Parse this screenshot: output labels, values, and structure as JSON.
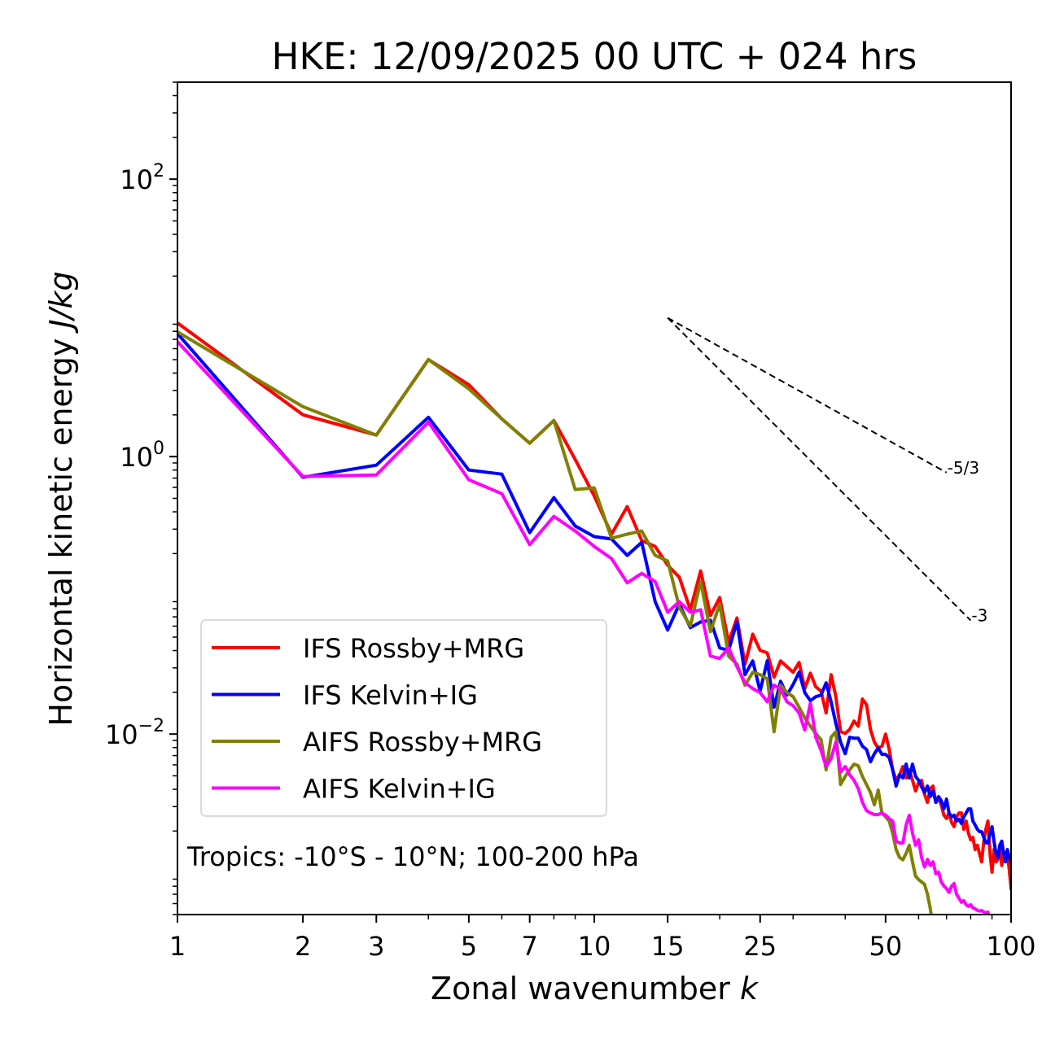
{
  "chart_data": {
    "type": "line",
    "title": "HKE: 12/09/2025 00 UTC + 024 hrs",
    "xlabel": "Zonal wavenumber",
    "xlabel_italic": "k",
    "ylabel": "Horizontal kinetic energy",
    "ylabel_italic": "J/kg",
    "xscale": "log",
    "yscale": "log",
    "xlim": [
      1,
      100
    ],
    "ylim": [
      0.0005,
      500
    ],
    "grid": false,
    "x_ticks": [
      1,
      2,
      3,
      5,
      7,
      10,
      15,
      25,
      50,
      100
    ],
    "x_tick_labels": [
      "1",
      "2",
      "3",
      "5",
      "7",
      "10",
      "15",
      "25",
      "50",
      "100"
    ],
    "x_minor_ticks": [
      4,
      6,
      8,
      9,
      20,
      30,
      40,
      60,
      70,
      80,
      90
    ],
    "y_ticks": [
      0.01,
      1,
      100
    ],
    "y_tick_labels": [
      {
        "base": "10",
        "exp": "−2"
      },
      {
        "base": "10",
        "exp": "0"
      },
      {
        "base": "10",
        "exp": "2"
      }
    ],
    "legend_position": "lower-left",
    "annotation": "Tropics: -10°S - 10°N; 100-200 hPa",
    "reference_lines": [
      {
        "slope": "-5/3",
        "exponent": -1.6667,
        "k_start": 15,
        "k_end": 70,
        "value_start": 10,
        "label": "-5/3"
      },
      {
        "slope": "-3",
        "exponent": -3,
        "k_start": 15,
        "k_end": 80,
        "value_start": 10,
        "label": "-3"
      }
    ],
    "x": [
      1,
      2,
      3,
      4,
      5,
      6,
      7,
      8,
      9,
      10,
      11,
      12,
      13,
      14,
      15,
      16,
      17,
      18,
      19,
      20,
      21,
      22,
      23,
      24,
      25,
      26,
      27,
      28,
      29,
      30,
      31,
      32,
      33,
      34,
      35,
      36,
      37,
      38,
      39,
      40,
      41,
      42,
      43,
      44,
      45,
      46,
      47,
      48,
      49,
      50,
      51,
      52,
      53,
      54,
      55,
      56,
      57,
      58,
      59,
      60,
      61,
      62,
      63,
      64,
      65,
      66,
      67,
      68,
      69,
      70,
      71,
      72,
      73,
      74,
      75,
      76,
      77,
      78,
      79,
      80,
      81,
      82,
      83,
      84,
      85,
      86,
      87,
      88,
      89,
      90,
      91,
      92,
      93,
      94,
      95,
      96,
      97,
      98,
      99,
      100
    ],
    "series": [
      {
        "name": "IFS Rossby+MRG",
        "color": "#ff0000",
        "values": [
          9.19,
          2.0,
          1.43,
          5.01,
          3.3,
          1.87,
          1.25,
          1.82,
          0.954,
          0.52,
          0.276,
          0.436,
          0.248,
          0.225,
          0.165,
          0.135,
          0.0787,
          0.15,
          0.0716,
          0.0964,
          0.0459,
          0.0688,
          0.0319,
          0.0525,
          0.0401,
          0.0385,
          0.0257,
          0.0337,
          0.0306,
          0.0279,
          0.0328,
          0.0213,
          0.0275,
          0.0219,
          0.0204,
          0.0142,
          0.0268,
          0.0186,
          0.0104,
          0.0101,
          0.0108,
          0.0124,
          0.0114,
          0.0179,
          0.0163,
          0.0108,
          0.00874,
          0.00795,
          0.00817,
          0.01,
          0.00774,
          0.00552,
          0.00464,
          0.00509,
          0.00583,
          0.00483,
          0.00552,
          0.00464,
          0.00389,
          0.00445,
          0.00464,
          0.00369,
          0.00322,
          0.00405,
          0.00422,
          0.00322,
          0.00345,
          0.00309,
          0.0026,
          0.00246,
          0.0027,
          0.0023,
          0.00215,
          0.00253,
          0.0027,
          0.0027,
          0.00206,
          0.00236,
          0.00193,
          0.00173,
          0.0018,
          0.00147,
          0.00158,
          0.00138,
          0.0012,
          0.00169,
          0.00206,
          0.00236,
          0.00138,
          0.00101,
          0.00147,
          0.0012,
          0.00125,
          0.00158,
          0.00113,
          0.00143,
          0.00129,
          0.00138,
          0.00105,
          0.00077
        ]
      },
      {
        "name": "IFS Kelvin+IG",
        "color": "#0000ff",
        "values": [
          7.71,
          0.709,
          0.868,
          1.92,
          0.8,
          0.748,
          0.283,
          0.506,
          0.316,
          0.265,
          0.255,
          0.194,
          0.241,
          0.0901,
          0.0562,
          0.0865,
          0.0585,
          0.0643,
          0.0661,
          0.0418,
          0.0401,
          0.0643,
          0.0268,
          0.0337,
          0.0204,
          0.0337,
          0.0156,
          0.024,
          0.0191,
          0.0228,
          0.0279,
          0.0199,
          0.0174,
          0.0186,
          0.0191,
          0.0234,
          0.0171,
          0.0119,
          0.00874,
          0.00723,
          0.00948,
          0.00935,
          0.00935,
          0.00817,
          0.00774,
          0.00632,
          0.00723,
          0.00795,
          0.00714,
          0.00714,
          0.00676,
          0.00552,
          0.00422,
          0.00509,
          0.00483,
          0.00607,
          0.00483,
          0.00607,
          0.00496,
          0.00464,
          0.00416,
          0.00379,
          0.00422,
          0.00354,
          0.00389,
          0.00322,
          0.00354,
          0.00331,
          0.00289,
          0.0034,
          0.0027,
          0.00253,
          0.0026,
          0.00236,
          0.00243,
          0.00227,
          0.00253,
          0.0027,
          0.00289,
          0.00289,
          0.00236,
          0.00221,
          0.00206,
          0.00198,
          0.00198,
          0.0018,
          0.00164,
          0.00164,
          0.00193,
          0.00215,
          0.00169,
          0.00138,
          0.00129,
          0.00158,
          0.00169,
          0.00138,
          0.0012,
          0.00147,
          0.00129,
          0.0012
        ]
      },
      {
        "name": "AIFS Rossby+MRG",
        "color": "#808000",
        "values": [
          7.93,
          2.29,
          1.43,
          5.01,
          3.08,
          1.87,
          1.25,
          1.82,
          0.579,
          0.595,
          0.258,
          0.276,
          0.291,
          0.194,
          0.177,
          0.0819,
          0.0601,
          0.126,
          0.0547,
          0.0865,
          0.0365,
          0.0319,
          0.0225,
          0.0279,
          0.0268,
          0.025,
          0.0104,
          0.0225,
          0.0199,
          0.0186,
          0.0156,
          0.0131,
          0.0114,
          0.0101,
          0.0091,
          0.00552,
          0.00948,
          0.0104,
          0.00433,
          0.00496,
          0.00552,
          0.00607,
          0.00591,
          0.00496,
          0.00433,
          0.00379,
          0.00309,
          0.00394,
          0.0027,
          0.00253,
          0.00236,
          0.00193,
          0.00147,
          0.00129,
          0.00124,
          0.00138,
          0.00158,
          0.0012,
          0.000944,
          0.000895,
          0.000859,
          0.000826,
          0.000702,
          0.000551,
          0.0004,
          0.0004,
          0.0004,
          0.0004,
          0.0004,
          0.0004,
          0.0004,
          0.0004,
          0.0004,
          0.0004,
          0.0004,
          0.0004,
          0.0004,
          0.0004,
          0.0004,
          0.0004,
          0.0004,
          0.0004,
          0.0004,
          0.0004,
          0.0004,
          0.0004,
          0.0004,
          0.0004,
          0.0004,
          0.0004,
          0.0004,
          0.0004,
          0.0004,
          0.0004,
          0.0004,
          0.0004,
          0.0004,
          0.0004,
          0.0004,
          0.0004
        ]
      },
      {
        "name": "AIFS Kelvin+IG",
        "color": "#ff00ff",
        "values": [
          6.74,
          0.719,
          0.738,
          1.77,
          0.681,
          0.541,
          0.232,
          0.371,
          0.291,
          0.225,
          0.184,
          0.123,
          0.144,
          0.126,
          0.0756,
          0.0901,
          0.0756,
          0.0787,
          0.0365,
          0.0351,
          0.0418,
          0.0306,
          0.0234,
          0.0213,
          0.0199,
          0.0171,
          0.0225,
          0.021,
          0.0171,
          0.016,
          0.0142,
          0.0107,
          0.0167,
          0.00948,
          0.00764,
          0.00583,
          0.00667,
          0.00874,
          0.00531,
          0.00583,
          0.00509,
          0.00464,
          0.00405,
          0.00322,
          0.00281,
          0.0027,
          0.00263,
          0.00263,
          0.0027,
          0.0026,
          0.00246,
          0.00236,
          0.00169,
          0.00164,
          0.00164,
          0.00221,
          0.0026,
          0.00193,
          0.00158,
          0.00173,
          0.00129,
          0.0011,
          0.00125,
          0.00113,
          0.0012,
          0.000984,
          0.00101,
          0.000859,
          0.000803,
          0.00077,
          0.000722,
          0.000803,
          0.000836,
          0.000702,
          0.000656,
          0.000613,
          0.00063,
          0.000589,
          0.000573,
          0.000589,
          0.000558,
          0.000551,
          0.000536,
          0.00053,
          0.000536,
          0.000521,
          0.000516,
          0.000521,
          0.0004,
          0.0004,
          0.0004,
          0.0004,
          0.0004,
          0.0004,
          0.0004,
          0.0004,
          0.0004,
          0.0004,
          0.0004,
          0.0004
        ]
      }
    ]
  }
}
